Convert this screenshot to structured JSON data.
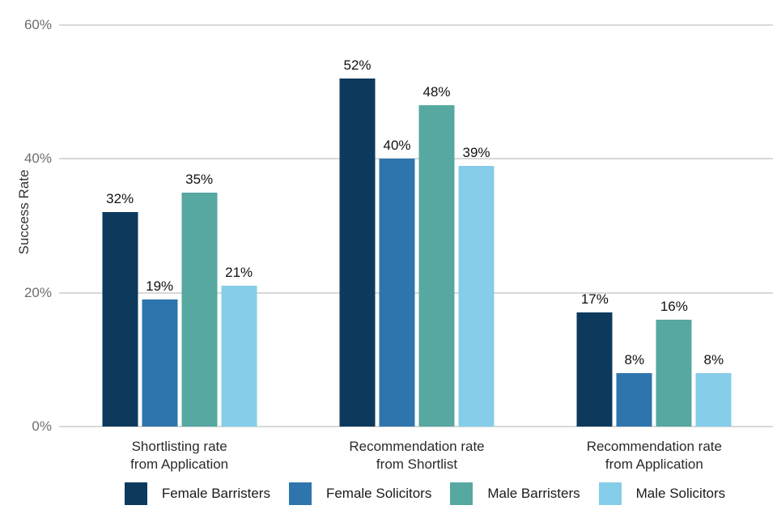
{
  "chart_data": {
    "type": "bar",
    "title": "",
    "xlabel": "",
    "ylabel": "Success Rate",
    "ylim": [
      0,
      60
    ],
    "ytick_values": [
      0,
      20,
      40,
      60
    ],
    "ytick_labels": [
      "0%",
      "20%",
      "40%",
      "60%"
    ],
    "grid": true,
    "legend_position": "bottom",
    "value_suffix": "%",
    "categories": [
      {
        "lines": [
          "Shortlisting rate",
          "from Application"
        ]
      },
      {
        "lines": [
          "Recommendation rate",
          "from Shortlist"
        ]
      },
      {
        "lines": [
          "Recommendation rate",
          "from Application"
        ]
      }
    ],
    "series": [
      {
        "name": "Female Barristers",
        "color": "#0d3a5c",
        "values": [
          32,
          52,
          17
        ]
      },
      {
        "name": "Female Solicitors",
        "color": "#2e75ad",
        "values": [
          19,
          40,
          8
        ]
      },
      {
        "name": "Male Barristers",
        "color": "#56a8a1",
        "values": [
          35,
          48,
          16
        ]
      },
      {
        "name": "Male Solicitors",
        "color": "#85cde8",
        "values": [
          21,
          39,
          8
        ]
      }
    ],
    "colors": {
      "gridline": "#d9d9d9",
      "tick_text": "#6e6e6e",
      "axis_text": "#333333",
      "value_text": "#111111"
    }
  }
}
